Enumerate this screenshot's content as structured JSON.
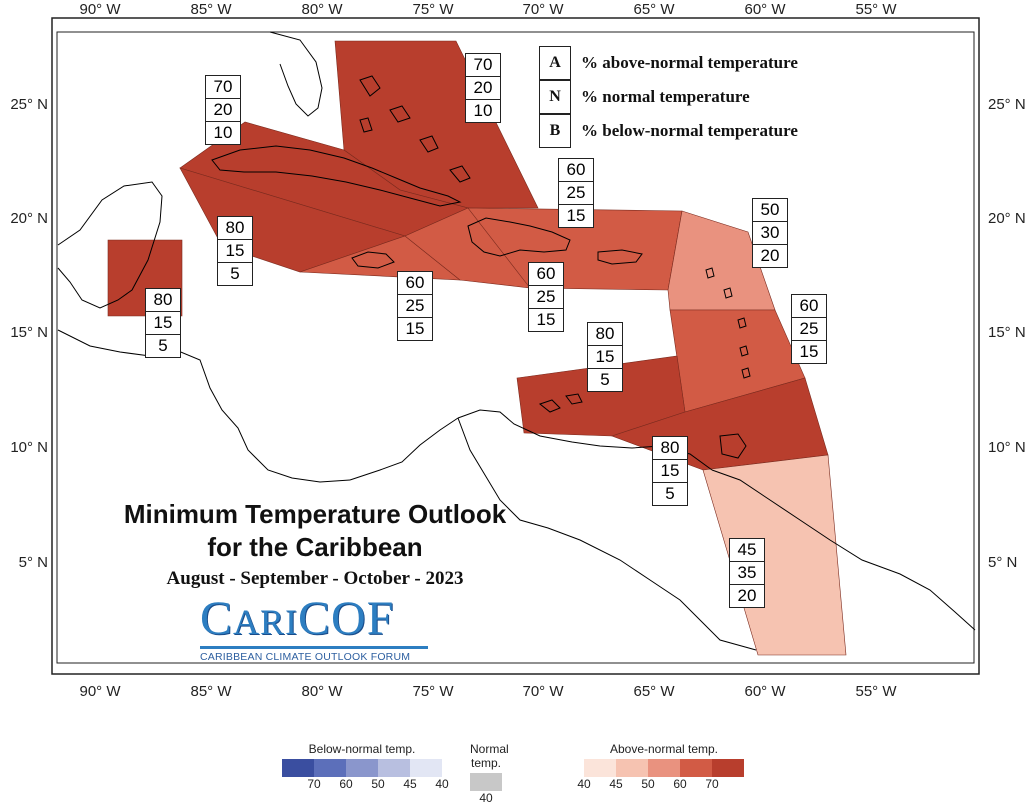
{
  "map": {
    "lon_ticks": [
      "90° W",
      "85° W",
      "80° W",
      "75° W",
      "70° W",
      "65° W",
      "60° W",
      "55° W"
    ],
    "lat_ticks": [
      "25° N",
      "20° N",
      "15° N",
      "10° N",
      "5° N"
    ]
  },
  "key": {
    "rows": [
      {
        "letter": "A",
        "text": "% above-normal temperature"
      },
      {
        "letter": "N",
        "text": "% normal temperature"
      },
      {
        "letter": "B",
        "text": "% below-normal temperature"
      }
    ]
  },
  "regions": [
    {
      "name": "bahamas",
      "A": "70",
      "N": "20",
      "B": "10",
      "color": "#b83e2d"
    },
    {
      "name": "cuba-north",
      "A": "70",
      "N": "20",
      "B": "10",
      "color": "#b83e2d"
    },
    {
      "name": "cuba-jamaica",
      "A": "80",
      "N": "15",
      "B": "5",
      "color": "#b83e2d"
    },
    {
      "name": "belize",
      "A": "80",
      "N": "15",
      "B": "5",
      "color": "#b83e2d"
    },
    {
      "name": "jamaica-south",
      "A": "60",
      "N": "25",
      "B": "15",
      "color": "#d25b45"
    },
    {
      "name": "hispaniola-south",
      "A": "60",
      "N": "25",
      "B": "15",
      "color": "#d25b45"
    },
    {
      "name": "greater-antilles-east",
      "A": "60",
      "N": "25",
      "B": "15",
      "color": "#d25b45"
    },
    {
      "name": "leeward-islands",
      "A": "50",
      "N": "30",
      "B": "20",
      "color": "#e9927f"
    },
    {
      "name": "windward-islands",
      "A": "60",
      "N": "25",
      "B": "15",
      "color": "#d25b45"
    },
    {
      "name": "abc-islands",
      "A": "80",
      "N": "15",
      "B": "5",
      "color": "#b83e2d"
    },
    {
      "name": "trinidad",
      "A": "80",
      "N": "15",
      "B": "5",
      "color": "#b83e2d"
    },
    {
      "name": "guianas",
      "A": "45",
      "N": "35",
      "B": "20",
      "color": "#f6c3b1"
    }
  ],
  "title": {
    "line1": "Minimum Temperature Outlook",
    "line2": "for the Caribbean",
    "period": "August - September - October - 2023"
  },
  "logo": {
    "word_first": "C",
    "word_mid": "ARI",
    "word_last": "COF",
    "subtitle": "CARIBBEAN CLIMATE OUTLOOK FORUM"
  },
  "legend": {
    "below": {
      "title": "Below-normal temp.",
      "ticks": [
        "70",
        "60",
        "50",
        "45",
        "40"
      ],
      "colors": [
        "#3a4ea0",
        "#5c6fba",
        "#8a96cc",
        "#b8bfe0",
        "#e2e6f4"
      ]
    },
    "normal": {
      "title": "Normal temp.",
      "ticks": [
        "40"
      ],
      "colors": [
        "#c8c8c8"
      ]
    },
    "above": {
      "title": "Above-normal temp.",
      "ticks": [
        "40",
        "45",
        "50",
        "60",
        "70"
      ],
      "colors": [
        "#fbe4da",
        "#f6c3b1",
        "#e9927f",
        "#d25b45",
        "#b83e2d"
      ]
    }
  }
}
